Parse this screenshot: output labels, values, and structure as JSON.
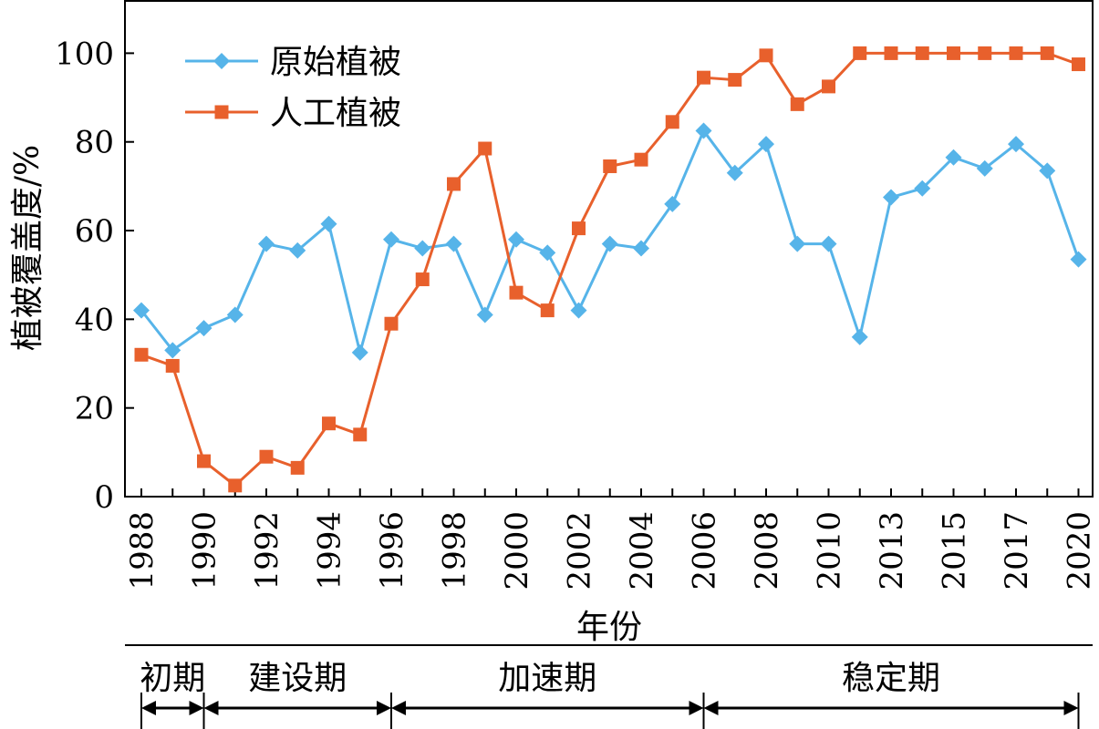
{
  "chart_data": {
    "type": "line",
    "title": "",
    "xlabel": "年份",
    "ylabel": "植被覆盖度/%",
    "ylim": [
      0,
      112
    ],
    "yticks": [
      0,
      20,
      40,
      60,
      80,
      100
    ],
    "categories": [
      "1988",
      "1989",
      "1990",
      "1991",
      "1992",
      "1993",
      "1994",
      "1995",
      "1996",
      "1997",
      "1998",
      "1999",
      "2000",
      "2001",
      "2002",
      "2003",
      "2004",
      "2005",
      "2006",
      "2007",
      "2008",
      "2009",
      "2010",
      "2011",
      "2013",
      "2014",
      "2015",
      "2016",
      "2017",
      "2018",
      "2020"
    ],
    "x_tick_labels": [
      "1988",
      "1990",
      "1992",
      "1994",
      "1996",
      "1998",
      "2000",
      "2002",
      "2004",
      "2006",
      "2008",
      "2010",
      "2013",
      "2015",
      "2017",
      "2020"
    ],
    "grid": false,
    "legend_position": "top-left",
    "series": [
      {
        "name": "原始植被",
        "color": "#56B4E9",
        "marker": "diamond",
        "values": [
          42,
          33,
          38,
          41,
          57,
          55.5,
          61.5,
          32.5,
          58,
          56,
          57,
          41,
          58,
          55,
          42,
          57,
          56,
          66,
          82.5,
          73,
          79.5,
          57,
          57,
          36,
          67.5,
          69.5,
          76.5,
          74,
          79.5,
          73.5,
          53.5
        ]
      },
      {
        "name": "人工植被",
        "color": "#E8602C",
        "marker": "square",
        "values": [
          32,
          29.5,
          8,
          2.5,
          9,
          6.5,
          16.5,
          14,
          39,
          49,
          70.5,
          78.5,
          46,
          42,
          60.5,
          74.5,
          76,
          84.5,
          94.5,
          94,
          99.5,
          88.5,
          92.5,
          100,
          100,
          100,
          100,
          100,
          100,
          100,
          97.5
        ]
      }
    ],
    "periods": [
      {
        "label": "初期",
        "start": "1988",
        "end": "1990"
      },
      {
        "label": "建设期",
        "start": "1990",
        "end": "1996"
      },
      {
        "label": "加速期",
        "start": "1996",
        "end": "2006"
      },
      {
        "label": "稳定期",
        "start": "2006",
        "end": "2020"
      }
    ]
  }
}
